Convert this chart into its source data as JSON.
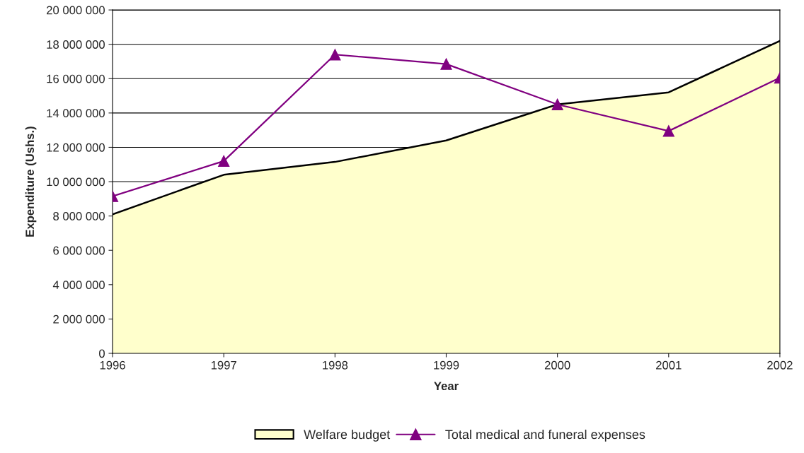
{
  "chart_data": {
    "type": "line",
    "xlabel": "Year",
    "ylabel": "Expenditure (Ushs.)",
    "x": [
      1996,
      1997,
      1998,
      1999,
      2000,
      2001,
      2002
    ],
    "series": [
      {
        "name": "Welfare budget",
        "type": "area",
        "color": "#ffffcc",
        "values": [
          8100000,
          10400000,
          11150000,
          12400000,
          14500000,
          15200000,
          18200000
        ]
      },
      {
        "name": "Total medical and funeral expenses",
        "color": "#800080",
        "marker": "triangle",
        "values": [
          9150000,
          11200000,
          17400000,
          16850000,
          14500000,
          12950000,
          16050000
        ]
      }
    ],
    "xlim": [
      1996,
      2002
    ],
    "xticks": [
      1996,
      1997,
      1998,
      1999,
      2000,
      2001,
      2002
    ],
    "ylim": [
      0,
      20000000
    ],
    "yticks": [
      {
        "value": 0,
        "label": "0"
      },
      {
        "value": 2000000,
        "label": "2 000 000"
      },
      {
        "value": 4000000,
        "label": "4 000 000"
      },
      {
        "value": 6000000,
        "label": "6 000 000"
      },
      {
        "value": 8000000,
        "label": "8 000 000"
      },
      {
        "value": 10000000,
        "label": "10 000 000"
      },
      {
        "value": 12000000,
        "label": "12 000 000"
      },
      {
        "value": 14000000,
        "label": "14 000 000"
      },
      {
        "value": 16000000,
        "label": "16 000 000"
      },
      {
        "value": 18000000,
        "label": "18 000 000"
      },
      {
        "value": 20000000,
        "label": "20 000 000"
      }
    ],
    "grid": "y",
    "legend": "bottom"
  }
}
